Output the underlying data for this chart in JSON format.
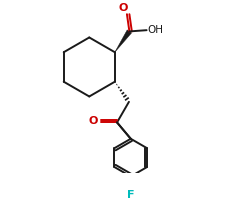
{
  "background_color": "#ffffff",
  "bond_color": "#1a1a1a",
  "carbonyl_o_color": "#cc0000",
  "fluorine_color": "#00bbbb",
  "line_width": 1.4,
  "figure_width": 2.4,
  "figure_height": 2.0,
  "dpi": 100,
  "xlim": [
    -1.2,
    2.2
  ],
  "ylim": [
    -2.9,
    1.3
  ]
}
